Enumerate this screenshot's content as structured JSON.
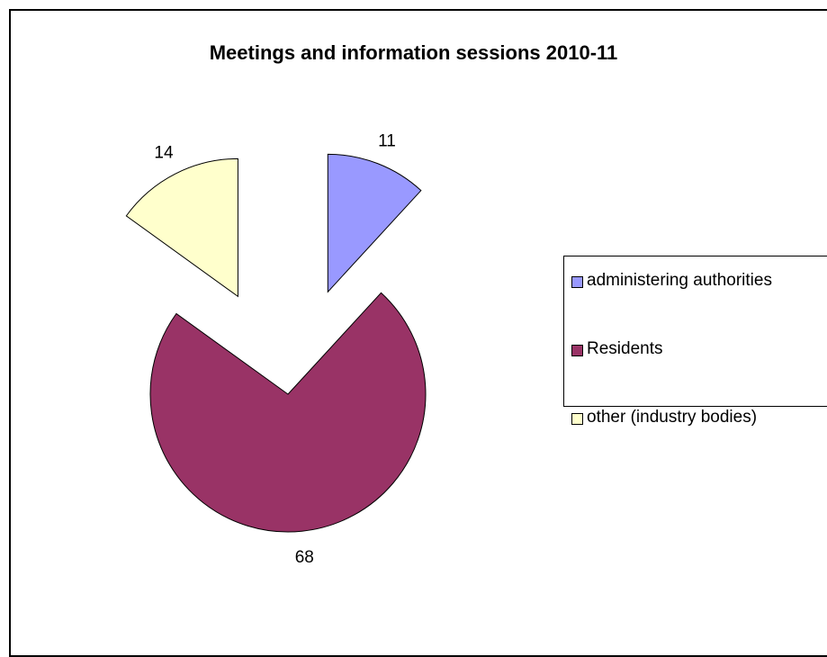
{
  "chart_data": {
    "type": "pie",
    "title": "Meetings and information sessions 2010-11",
    "exploded": true,
    "slices": [
      {
        "label": "administering authorities",
        "value": 11,
        "color": "#9999FF"
      },
      {
        "label": "Residents",
        "value": 68,
        "color": "#993366"
      },
      {
        "label": "other (industry bodies)",
        "value": 14,
        "color": "#FFFFCC"
      }
    ],
    "legend_position": "right",
    "data_labels": [
      "11",
      "68",
      "14"
    ]
  }
}
